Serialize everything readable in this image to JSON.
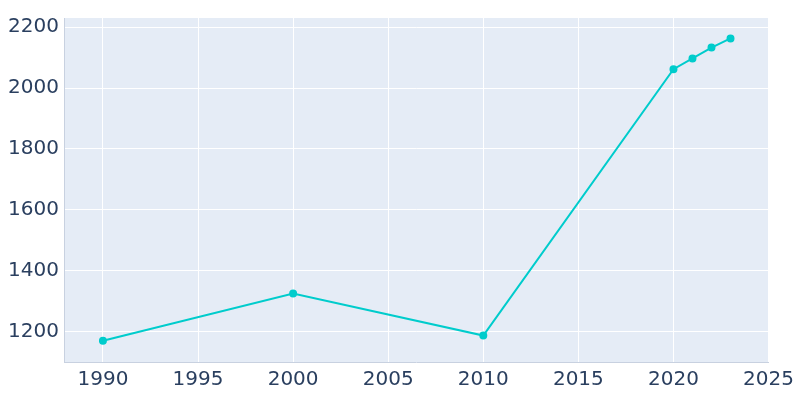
{
  "chart_data": {
    "type": "line",
    "x": [
      1990,
      2000,
      2010,
      2020,
      2021,
      2022,
      2023
    ],
    "values": [
      1170,
      1325,
      1187,
      2062,
      2097,
      2133,
      2163
    ],
    "color": "#00cccc",
    "marker": "circle",
    "xlim": [
      1988,
      2025
    ],
    "xticks": [
      1990,
      1995,
      2000,
      2005,
      2010,
      2015,
      2020,
      2025
    ],
    "ylim": [
      1100,
      2230
    ],
    "yticks": [
      1200,
      1400,
      1600,
      1800,
      2000,
      2200
    ],
    "grid": true
  }
}
